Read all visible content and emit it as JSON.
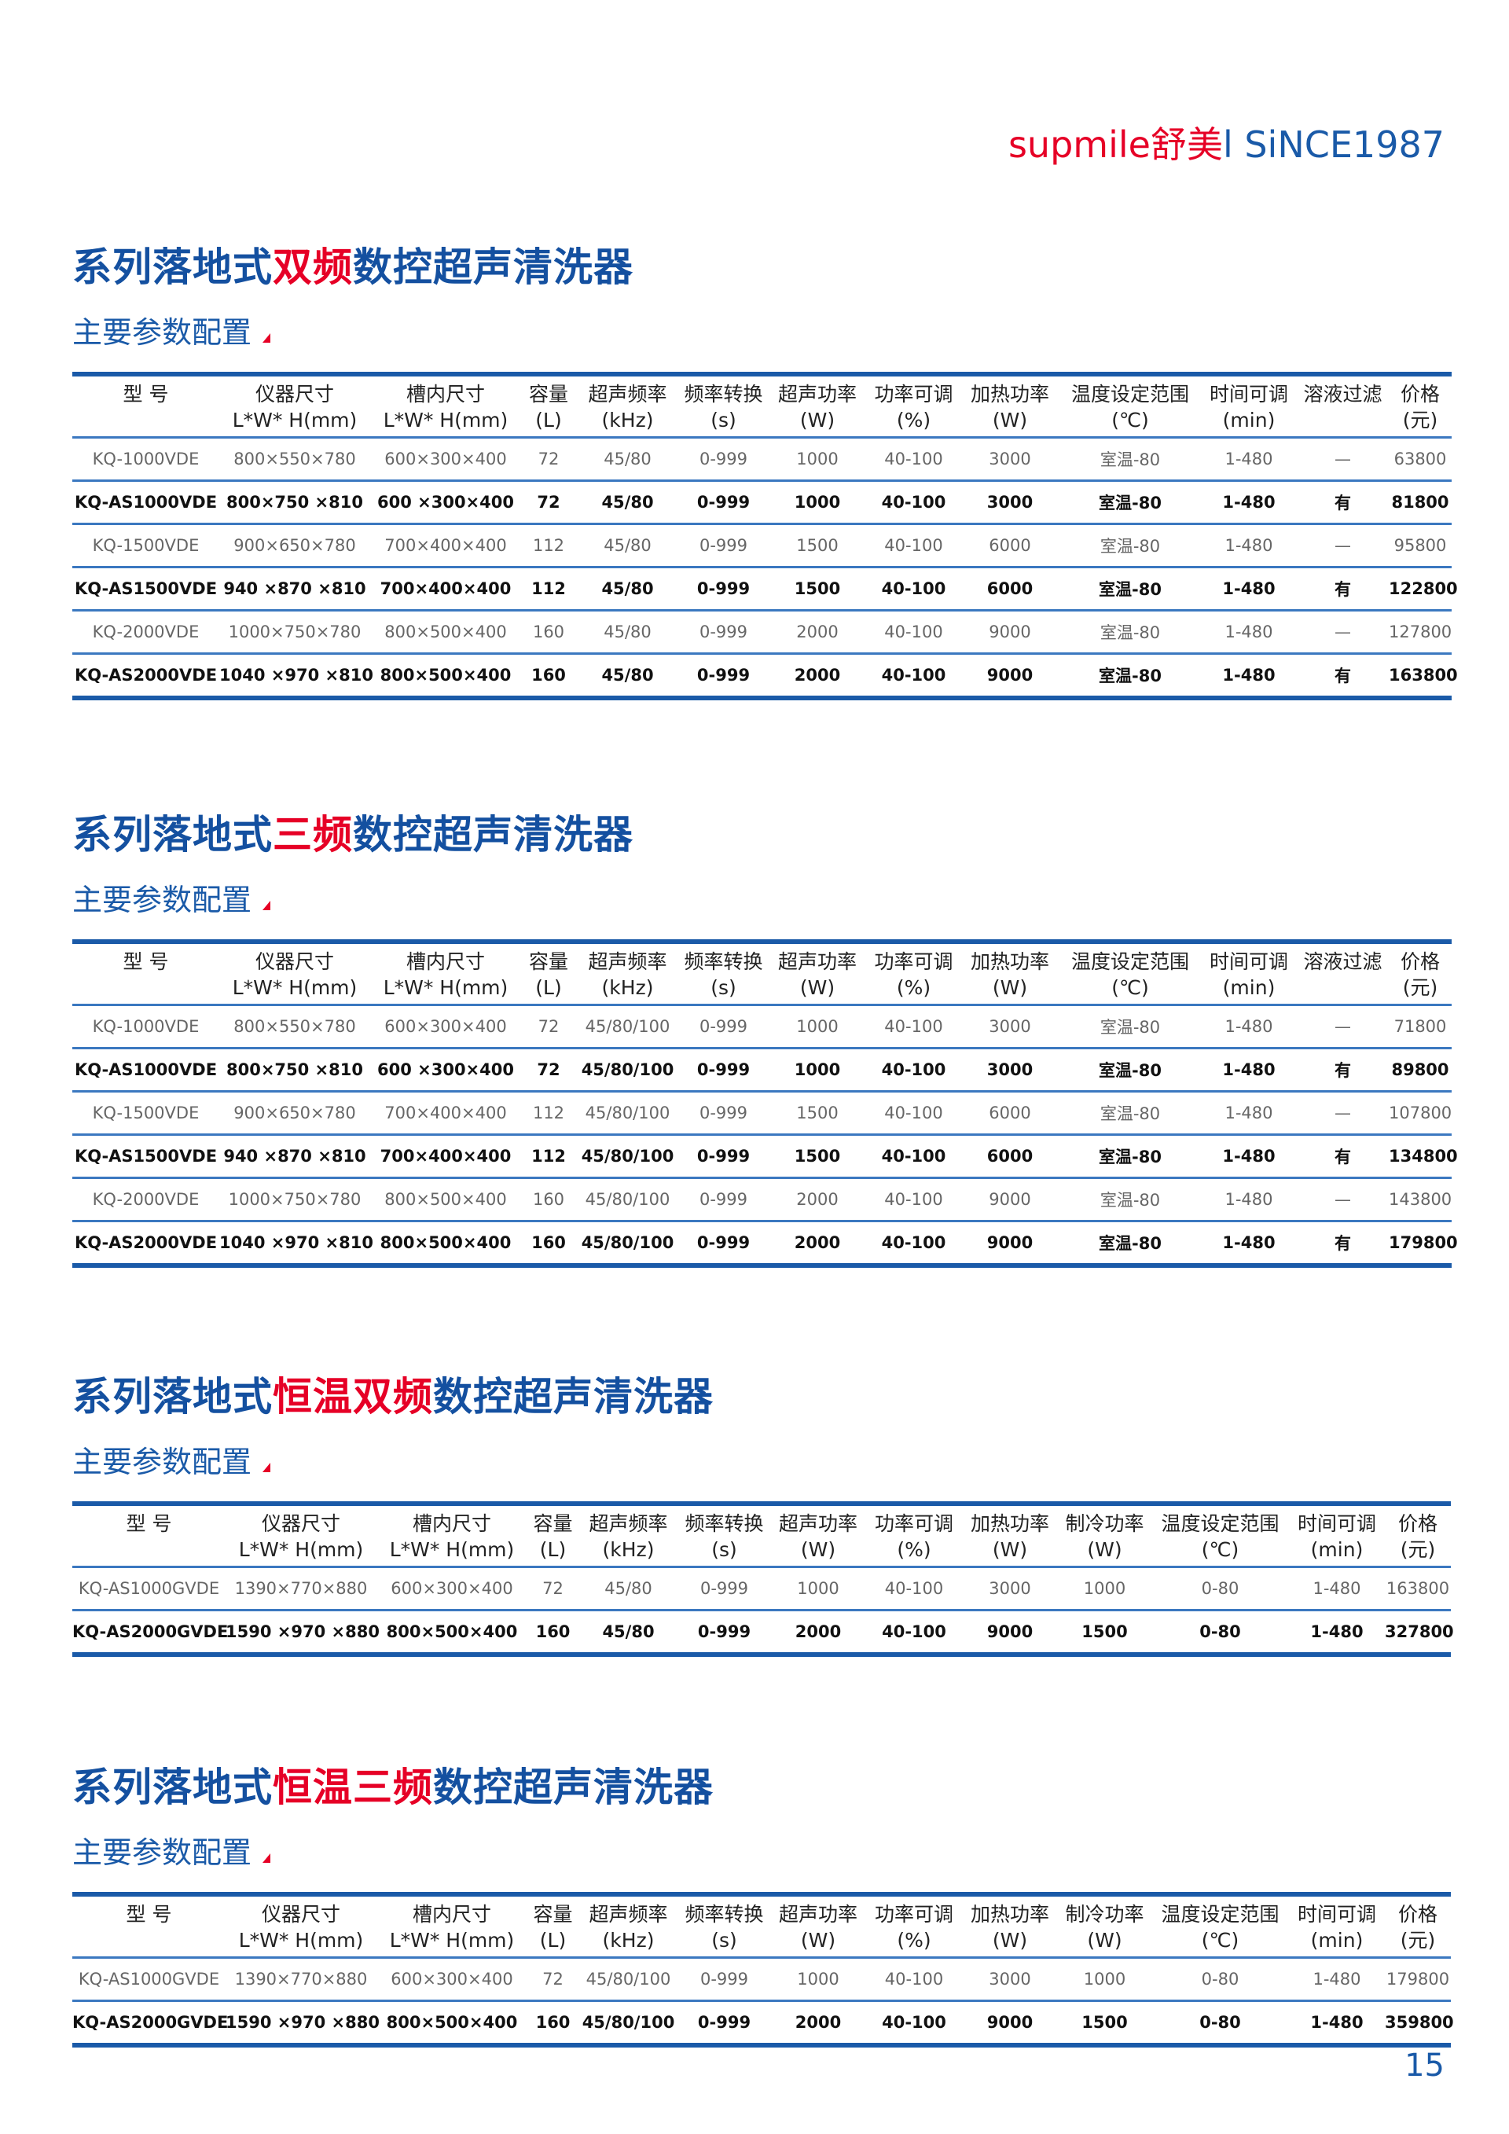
{
  "brand": {
    "red": "supmile舒美",
    "blue": "l SiNCE1987"
  },
  "page_number": "15",
  "sections": [
    {
      "title_prefix": "系列落地式",
      "title_highlight": "双频",
      "title_suffix": "数控超声清洗器",
      "subtitle": "主要参数配置",
      "columns": [
        [
          "型 号",
          ""
        ],
        [
          "仪器尺寸",
          "L*W* H(mm)"
        ],
        [
          "槽内尺寸",
          "L*W* H(mm)"
        ],
        [
          "容量",
          "(L)"
        ],
        [
          "超声频率",
          "(kHz)"
        ],
        [
          "频率转换",
          "(s)"
        ],
        [
          "超声功率",
          "(W)"
        ],
        [
          "功率可调",
          "(%)"
        ],
        [
          "加热功率",
          "(W)"
        ],
        [
          "温度设定范围",
          "(℃)"
        ],
        [
          "时间可调",
          "(min)"
        ],
        [
          "溶液过滤",
          ""
        ],
        [
          "价格",
          "(元)"
        ]
      ],
      "rows": [
        {
          "style": "light",
          "cells": [
            "KQ-1000VDE",
            "800×550×780",
            "600×300×400",
            "72",
            "45/80",
            "0-999",
            "1000",
            "40-100",
            "3000",
            "室温-80",
            "1-480",
            "—",
            "63800"
          ]
        },
        {
          "style": "bold",
          "cells": [
            "KQ-AS1000VDE",
            "800×750 ×810",
            "600 ×300×400",
            "72",
            "45/80",
            "0-999",
            "1000",
            "40-100",
            "3000",
            "室温-80",
            "1-480",
            "有",
            "81800"
          ]
        },
        {
          "style": "light",
          "cells": [
            "KQ-1500VDE",
            "900×650×780",
            "700×400×400",
            "112",
            "45/80",
            "0-999",
            "1500",
            "40-100",
            "6000",
            "室温-80",
            "1-480",
            "—",
            "95800"
          ]
        },
        {
          "style": "bold",
          "cells": [
            "KQ-AS1500VDE",
            "940 ×870 ×810",
            "700×400×400",
            "112",
            "45/80",
            "0-999",
            "1500",
            "40-100",
            "6000",
            "室温-80",
            "1-480",
            "有",
            "122800"
          ]
        },
        {
          "style": "light",
          "cells": [
            "KQ-2000VDE",
            "1000×750×780",
            "800×500×400",
            "160",
            "45/80",
            "0-999",
            "2000",
            "40-100",
            "9000",
            "室温-80",
            "1-480",
            "—",
            "127800"
          ]
        },
        {
          "style": "bold",
          "cells": [
            "KQ-AS2000VDE",
            "1040 ×970 ×810",
            "800×500×400",
            "160",
            "45/80",
            "0-999",
            "2000",
            "40-100",
            "9000",
            "室温-80",
            "1-480",
            "有",
            "163800"
          ]
        }
      ]
    },
    {
      "title_prefix": "系列落地式",
      "title_highlight": "三频",
      "title_suffix": "数控超声清洗器",
      "subtitle": "主要参数配置",
      "columns": [
        [
          "型 号",
          ""
        ],
        [
          "仪器尺寸",
          "L*W* H(mm)"
        ],
        [
          "槽内尺寸",
          "L*W* H(mm)"
        ],
        [
          "容量",
          "(L)"
        ],
        [
          "超声频率",
          "(kHz)"
        ],
        [
          "频率转换",
          "(s)"
        ],
        [
          "超声功率",
          "(W)"
        ],
        [
          "功率可调",
          "(%)"
        ],
        [
          "加热功率",
          "(W)"
        ],
        [
          "温度设定范围",
          "(℃)"
        ],
        [
          "时间可调",
          "(min)"
        ],
        [
          "溶液过滤",
          ""
        ],
        [
          "价格",
          "(元)"
        ]
      ],
      "rows": [
        {
          "style": "light",
          "cells": [
            "KQ-1000VDE",
            "800×550×780",
            "600×300×400",
            "72",
            "45/80/100",
            "0-999",
            "1000",
            "40-100",
            "3000",
            "室温-80",
            "1-480",
            "—",
            "71800"
          ]
        },
        {
          "style": "bold",
          "cells": [
            "KQ-AS1000VDE",
            "800×750 ×810",
            "600 ×300×400",
            "72",
            "45/80/100",
            "0-999",
            "1000",
            "40-100",
            "3000",
            "室温-80",
            "1-480",
            "有",
            "89800"
          ]
        },
        {
          "style": "light",
          "cells": [
            "KQ-1500VDE",
            "900×650×780",
            "700×400×400",
            "112",
            "45/80/100",
            "0-999",
            "1500",
            "40-100",
            "6000",
            "室温-80",
            "1-480",
            "—",
            "107800"
          ]
        },
        {
          "style": "bold",
          "cells": [
            "KQ-AS1500VDE",
            "940 ×870 ×810",
            "700×400×400",
            "112",
            "45/80/100",
            "0-999",
            "1500",
            "40-100",
            "6000",
            "室温-80",
            "1-480",
            "有",
            "134800"
          ]
        },
        {
          "style": "light",
          "cells": [
            "KQ-2000VDE",
            "1000×750×780",
            "800×500×400",
            "160",
            "45/80/100",
            "0-999",
            "2000",
            "40-100",
            "9000",
            "室温-80",
            "1-480",
            "—",
            "143800"
          ]
        },
        {
          "style": "bold",
          "cells": [
            "KQ-AS2000VDE",
            "1040 ×970 ×810",
            "800×500×400",
            "160",
            "45/80/100",
            "0-999",
            "2000",
            "40-100",
            "9000",
            "室温-80",
            "1-480",
            "有",
            "179800"
          ]
        }
      ]
    },
    {
      "title_prefix": "系列落地式",
      "title_highlight": "恒温双频",
      "title_suffix": "数控超声清洗器",
      "subtitle": "主要参数配置",
      "columns": [
        [
          "型 号",
          ""
        ],
        [
          "仪器尺寸",
          "L*W* H(mm)"
        ],
        [
          "槽内尺寸",
          "L*W* H(mm)"
        ],
        [
          "容量",
          "(L)"
        ],
        [
          "超声频率",
          "(kHz)"
        ],
        [
          "频率转换",
          "(s)"
        ],
        [
          "超声功率",
          "(W)"
        ],
        [
          "功率可调",
          "(%)"
        ],
        [
          "加热功率",
          "(W)"
        ],
        [
          "制冷功率",
          "(W)"
        ],
        [
          "温度设定范围",
          "(℃)"
        ],
        [
          "时间可调",
          "(min)"
        ],
        [
          "价格",
          "(元)"
        ]
      ],
      "rows": [
        {
          "style": "light",
          "cells": [
            "KQ-AS1000GVDE",
            "1390×770×880",
            "600×300×400",
            "72",
            "45/80",
            "0-999",
            "1000",
            "40-100",
            "3000",
            "1000",
            "0-80",
            "1-480",
            "163800"
          ]
        },
        {
          "style": "bold",
          "cells": [
            "KQ-AS2000GVDE",
            "1590 ×970 ×880",
            "800×500×400",
            "160",
            "45/80",
            "0-999",
            "2000",
            "40-100",
            "9000",
            "1500",
            "0-80",
            "1-480",
            "327800"
          ]
        }
      ]
    },
    {
      "title_prefix": "系列落地式",
      "title_highlight": "恒温三频",
      "title_suffix": "数控超声清洗器",
      "subtitle": "主要参数配置",
      "columns": [
        [
          "型 号",
          ""
        ],
        [
          "仪器尺寸",
          "L*W* H(mm)"
        ],
        [
          "槽内尺寸",
          "L*W* H(mm)"
        ],
        [
          "容量",
          "(L)"
        ],
        [
          "超声频率",
          "(kHz)"
        ],
        [
          "频率转换",
          "(s)"
        ],
        [
          "超声功率",
          "(W)"
        ],
        [
          "功率可调",
          "(%)"
        ],
        [
          "加热功率",
          "(W)"
        ],
        [
          "制冷功率",
          "(W)"
        ],
        [
          "温度设定范围",
          "(℃)"
        ],
        [
          "时间可调",
          "(min)"
        ],
        [
          "价格",
          "(元)"
        ]
      ],
      "rows": [
        {
          "style": "light",
          "cells": [
            "KQ-AS1000GVDE",
            "1390×770×880",
            "600×300×400",
            "72",
            "45/80/100",
            "0-999",
            "1000",
            "40-100",
            "3000",
            "1000",
            "0-80",
            "1-480",
            "179800"
          ]
        },
        {
          "style": "bold",
          "cells": [
            "KQ-AS2000GVDE",
            "1590 ×970 ×880",
            "800×500×400",
            "160",
            "45/80/100",
            "0-999",
            "2000",
            "40-100",
            "9000",
            "1500",
            "0-80",
            "1-480",
            "359800"
          ]
        }
      ]
    }
  ]
}
